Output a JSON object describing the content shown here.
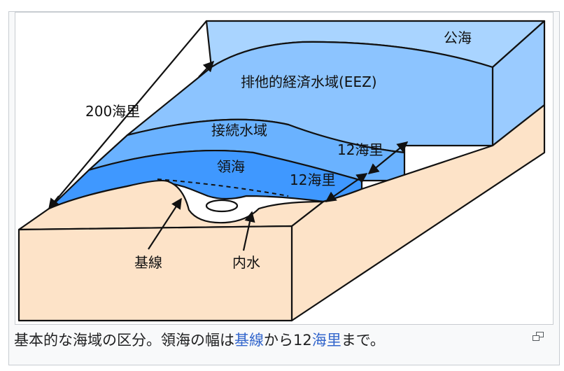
{
  "diagram": {
    "labels": {
      "high_seas": "公海",
      "eez": "排他的経済水域(EEZ)",
      "eez_width": "200海里",
      "contiguous_zone": "接続水域",
      "contiguous_width": "12海里",
      "territorial_sea": "領海",
      "territorial_width": "12海里",
      "baseline": "基線",
      "internal_waters": "内水"
    },
    "colors": {
      "high_seas": "#a9d4ff",
      "eez": "#8cc4ff",
      "contiguous": "#6ab2ff",
      "territorial": "#3f98ff",
      "land": "#fde3c8",
      "outline": "#111111"
    }
  },
  "caption": {
    "part1": "基本的な海域の区分。領海の幅は",
    "link1": "基線",
    "part2": "から12",
    "link2": "海里",
    "part3": "まで。"
  },
  "enlarge_icon": "magnify-icon"
}
